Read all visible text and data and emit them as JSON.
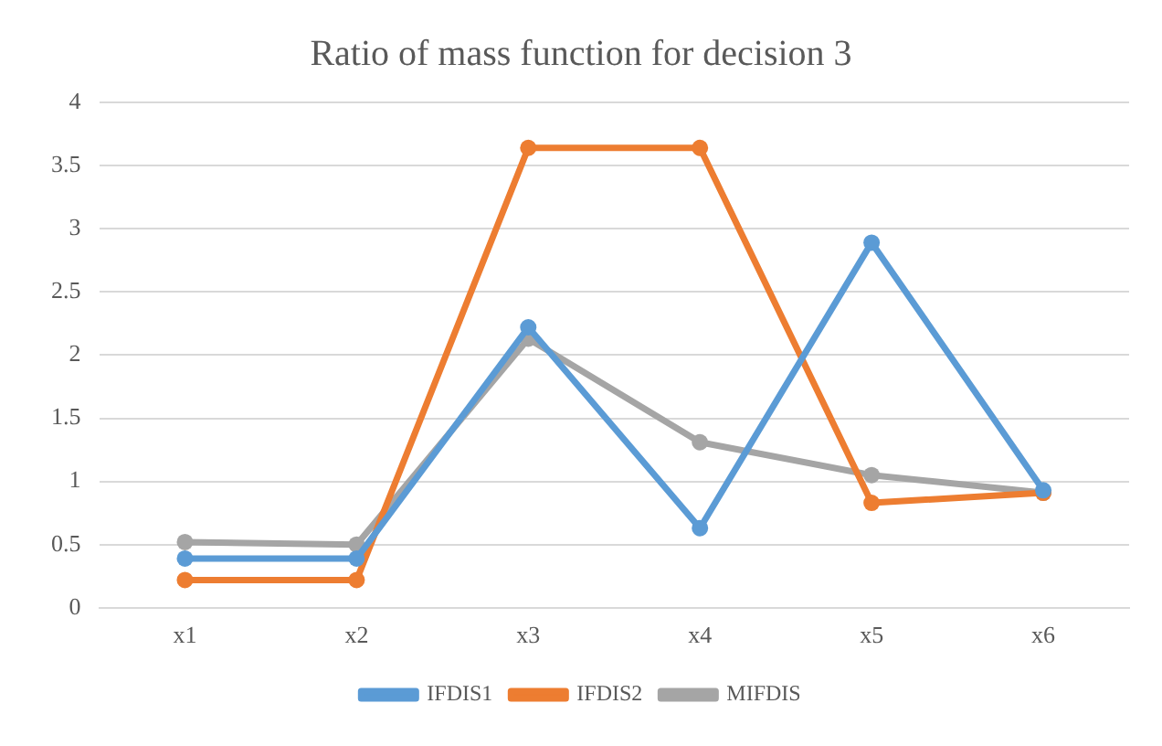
{
  "chart_data": {
    "type": "line",
    "title": "Ratio of mass function for decision 3",
    "categories": [
      "x1",
      "x2",
      "x3",
      "x4",
      "x5",
      "x6"
    ],
    "series": [
      {
        "name": "IFDIS1",
        "color": "#5b9bd5",
        "values": [
          0.39,
          0.39,
          2.22,
          0.63,
          2.89,
          0.93
        ]
      },
      {
        "name": "IFDIS2",
        "color": "#ed7d31",
        "values": [
          0.22,
          0.22,
          3.64,
          3.64,
          0.83,
          0.91
        ]
      },
      {
        "name": "MIFDIS",
        "color": "#a5a5a5",
        "values": [
          0.52,
          0.5,
          2.13,
          1.31,
          1.05,
          0.91
        ]
      }
    ],
    "ylim": [
      0,
      4
    ],
    "yticks": [
      0,
      0.5,
      1,
      1.5,
      2,
      2.5,
      3,
      3.5,
      4
    ],
    "grid": "y",
    "legend": "bottom",
    "marker": "circle"
  }
}
